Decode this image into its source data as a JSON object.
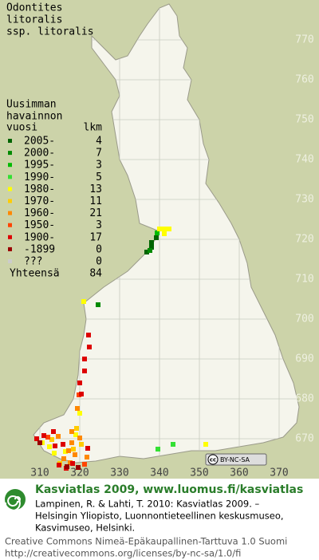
{
  "title": [
    "Odontites",
    "litoralis",
    "ssp. litoralis"
  ],
  "legend": {
    "heading": [
      "Uusimman",
      "havainnon"
    ],
    "year_header": "vuosi",
    "count_header": "lkm",
    "rows": [
      {
        "label": "2005-",
        "count": 4,
        "color": "#006400",
        "squares": [
          [
            336.8,
            716.8
          ],
          [
            338,
            718
          ],
          [
            338,
            719.2
          ],
          [
            339.2,
            720.4
          ]
        ]
      },
      {
        "label": "2000-",
        "count": 7,
        "color": "#008a00",
        "squares": [
          [
            324.6,
            703.6
          ],
          [
            337.6,
            717.2
          ]
        ]
      },
      {
        "label": "1995-",
        "count": 3,
        "color": "#00bb00",
        "squares": [
          [
            339.4,
            721.6
          ]
        ]
      },
      {
        "label": "1990-",
        "count": 5,
        "color": "#33e033",
        "squares": [
          [
            343.4,
            668.6
          ],
          [
            339.6,
            667.4
          ]
        ]
      },
      {
        "label": "1980-",
        "count": 13,
        "color": "#ffff00",
        "squares": [
          [
            340,
            722.6
          ],
          [
            341.2,
            722.6
          ],
          [
            342.4,
            722.6
          ],
          [
            341.2,
            721.4
          ],
          [
            321,
            704.4
          ],
          [
            351.6,
            668.6
          ],
          [
            310.6,
            669
          ],
          [
            312.4,
            668
          ],
          [
            313.6,
            666.4
          ],
          [
            319,
            671
          ],
          [
            316.4,
            666.8
          ],
          [
            320,
            676.4
          ]
        ]
      },
      {
        "label": "1970-",
        "count": 11,
        "color": "#ffcc00",
        "squares": [
          [
            313,
            669.8
          ],
          [
            318.4,
            667.4
          ],
          [
            320.4,
            668.6
          ],
          [
            315,
            663.8
          ],
          [
            319.2,
            672.6
          ]
        ]
      },
      {
        "label": "1960-",
        "count": 21,
        "color": "#ff8800",
        "squares": [
          [
            318,
            669
          ],
          [
            317.2,
            667
          ],
          [
            318.8,
            666
          ],
          [
            316,
            665
          ],
          [
            314.6,
            670.6
          ],
          [
            319.4,
            677.6
          ],
          [
            318,
            671.8
          ],
          [
            321.8,
            665.4
          ],
          [
            317.6,
            664
          ],
          [
            320,
            670.2
          ]
        ]
      },
      {
        "label": "1950-",
        "count": 3,
        "color": "#ff4400",
        "squares": [
          [
            319.8,
            681
          ],
          [
            312,
            670.4
          ],
          [
            321.2,
            663.6
          ]
        ]
      },
      {
        "label": "1900-",
        "count": 17,
        "color": "#dd0000",
        "squares": [
          [
            322.2,
            696
          ],
          [
            322.4,
            693
          ],
          [
            321.2,
            690
          ],
          [
            321.2,
            687
          ],
          [
            320,
            684
          ],
          [
            320.4,
            681.2
          ],
          [
            309.2,
            670
          ],
          [
            311,
            670.8
          ],
          [
            313.8,
            668.2
          ],
          [
            315.8,
            668.6
          ],
          [
            314.8,
            663.4
          ],
          [
            316.6,
            662.6
          ],
          [
            318.2,
            663.8
          ],
          [
            322,
            667.6
          ],
          [
            313.4,
            671.8
          ]
        ]
      },
      {
        "label": "-1899",
        "count": 0,
        "color": "#990000",
        "squares": [
          [
            310,
            669
          ],
          [
            316.8,
            663
          ],
          [
            319.6,
            662.8
          ]
        ]
      },
      {
        "label": "???",
        "count": 0,
        "color": "#cccccc",
        "squares": []
      }
    ],
    "total_label": "Yhteensä",
    "total": 84
  },
  "grid": {
    "yticks": [
      770,
      760,
      750,
      740,
      730,
      720,
      710,
      700,
      690,
      680,
      670
    ],
    "xticks": [
      310,
      320,
      330,
      340,
      350,
      360,
      370
    ]
  },
  "license_badge": {
    "icon": "cc",
    "text": "BY-NC-SA"
  },
  "footer": {
    "headline": "Kasviatlas 2009, www.luomus.fi/kasviatlas",
    "citation": [
      "Lampinen, R. & Lahti, T. 2010: Kasviatlas 2009. –",
      "Helsingin Yliopisto, Luonnontieteellinen keskusmuseo,",
      "Kasvimuseo, Helsinki."
    ],
    "license": [
      "Creative Commons Nimeä-Epäkaupallinen-Tarttuva 1.0 Suomi",
      "http://creativecommons.org/licenses/by-nc-sa/1.0/fi"
    ]
  }
}
